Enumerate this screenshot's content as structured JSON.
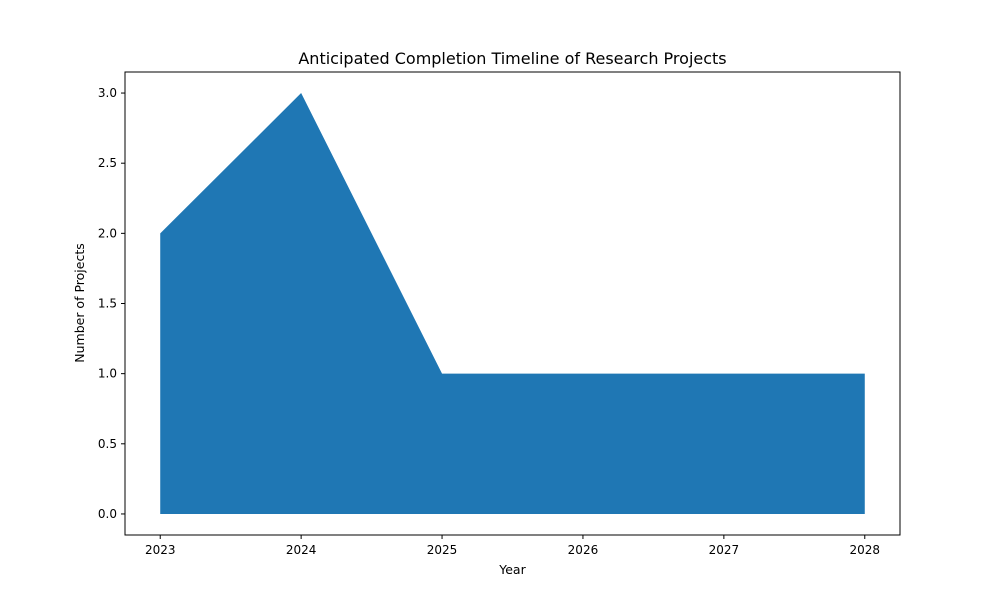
{
  "chart_data": {
    "type": "area",
    "title": "Anticipated Completion Timeline of Research Projects",
    "xlabel": "Year",
    "ylabel": "Number of Projects",
    "x": [
      2023,
      2024,
      2025,
      2026,
      2027,
      2028
    ],
    "x_tick_labels": [
      "2023",
      "2024",
      "2025",
      "2026",
      "2027",
      "2028"
    ],
    "series": [
      {
        "values": [
          2,
          3,
          1,
          1,
          1,
          1
        ],
        "color": "#1f77b4"
      }
    ],
    "y_ticks": [
      0.0,
      0.5,
      1.0,
      1.5,
      2.0,
      2.5,
      3.0
    ],
    "y_tick_labels": [
      "0.0",
      "0.5",
      "1.0",
      "1.5",
      "2.0",
      "2.5",
      "3.0"
    ],
    "xlim": [
      2022.75,
      2028.25
    ],
    "ylim": [
      -0.15,
      3.15
    ],
    "grid": false,
    "legend": "none"
  }
}
